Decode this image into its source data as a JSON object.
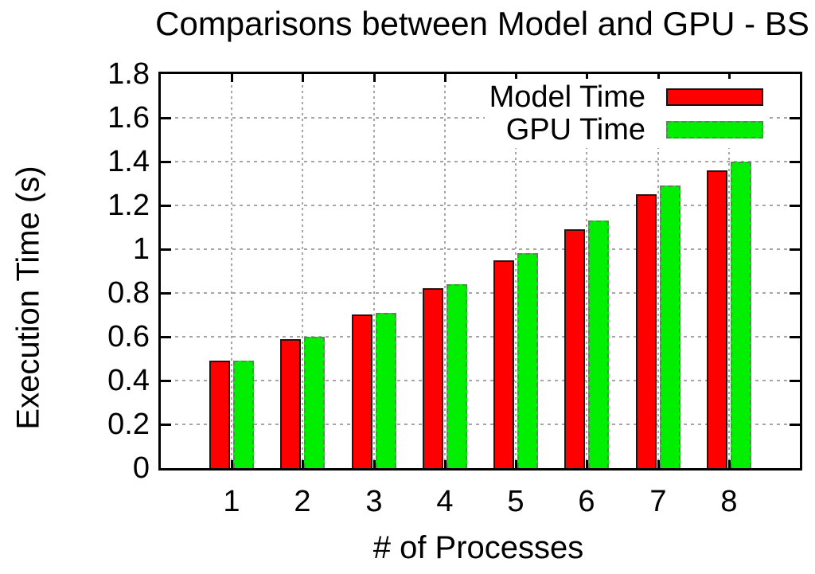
{
  "chart_data": {
    "type": "bar",
    "title": "Comparisons between Model and GPU - BS",
    "xlabel": "# of Processes",
    "ylabel": "Execution Time (s)",
    "categories": [
      "1",
      "2",
      "3",
      "4",
      "5",
      "6",
      "7",
      "8"
    ],
    "series": [
      {
        "name": "Model Time",
        "color": "#ff0000",
        "border_color": "#2a1010",
        "border_style": "solid",
        "values": [
          0.49,
          0.59,
          0.7,
          0.82,
          0.95,
          1.09,
          1.25,
          1.36
        ]
      },
      {
        "name": "GPU Time",
        "color": "#00ee00",
        "border_color": "#4f8f4f",
        "border_style": "dashed",
        "values": [
          0.49,
          0.6,
          0.71,
          0.84,
          0.98,
          1.13,
          1.29,
          1.4
        ]
      }
    ],
    "ylim": [
      0,
      1.8
    ],
    "y_ticks": [
      "0",
      "0.2",
      "0.4",
      "0.6",
      "0.8",
      "1",
      "1.2",
      "1.4",
      "1.6",
      "1.8"
    ],
    "grid": true,
    "legend_position": "top-right",
    "axis_color": "#000000",
    "grid_color": "#a6a6a6",
    "background": "#ffffff"
  }
}
